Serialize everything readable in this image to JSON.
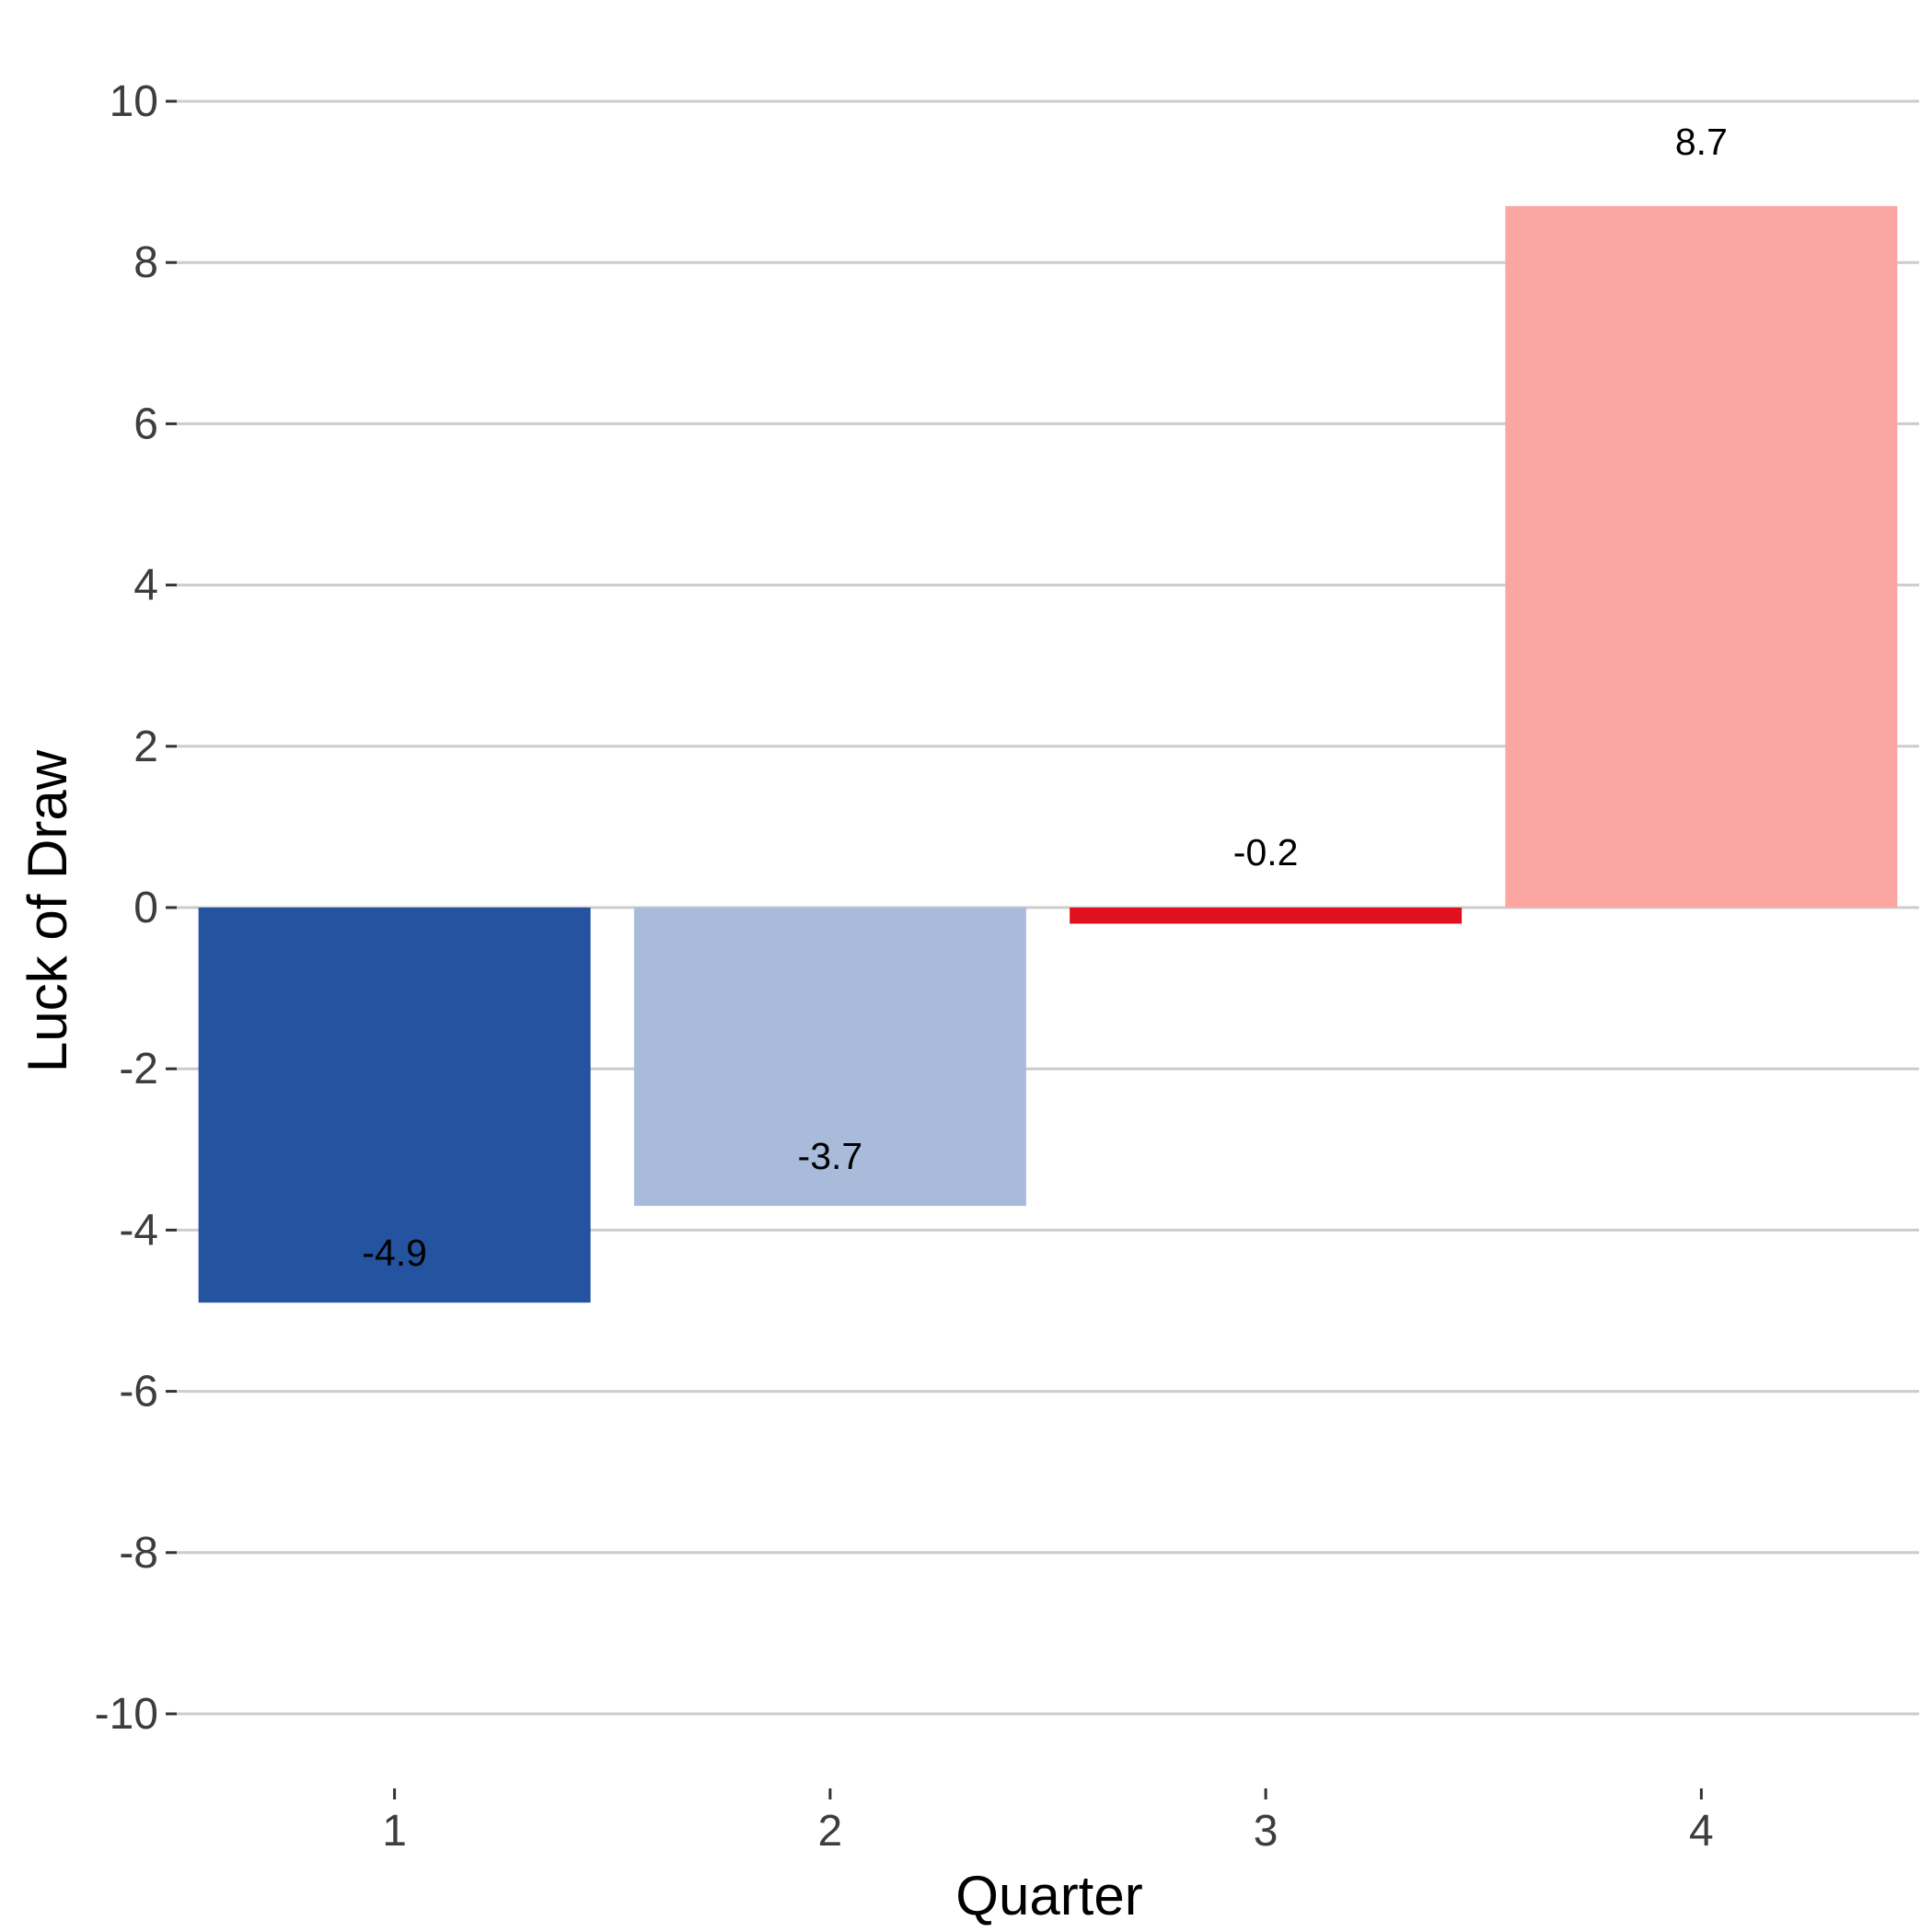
{
  "chart_data": {
    "type": "bar",
    "title": "",
    "xlabel": "Quarter",
    "ylabel": "Luck of Draw",
    "categories": [
      "1",
      "2",
      "3",
      "4"
    ],
    "values": [
      -4.9,
      -3.7,
      -0.2,
      8.7
    ],
    "data_labels": [
      "-4.9",
      "-3.7",
      "-0.2",
      "8.7"
    ],
    "bar_colors": [
      "#2453a0",
      "#a8bbdb",
      "#e0101e",
      "#fca6a2"
    ],
    "ylim": [
      -10,
      10
    ],
    "yticks": [
      10,
      8,
      6,
      4,
      2,
      0,
      -2,
      -4,
      -6,
      -8,
      -10
    ],
    "ytick_labels": [
      "10",
      "8",
      "6",
      "4",
      "2",
      "0",
      "-2",
      "-4",
      "-6",
      "-8",
      "-10"
    ],
    "grid": true,
    "legend": "none"
  }
}
